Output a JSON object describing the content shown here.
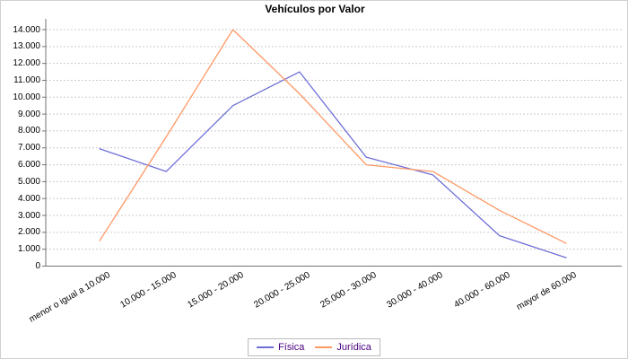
{
  "chart_data": {
    "type": "line",
    "title": "Vehículos por Valor",
    "categories": [
      "menor o igual a 10.000",
      "10.000 - 15.000",
      "15.000 - 20.000",
      "20.000 - 25.000",
      "25.000 - 30.000",
      "30.000 - 40.000",
      "40.000 - 60.000",
      "mayor de 60.000"
    ],
    "series": [
      {
        "name": "Física",
        "color": "#6f6fd8",
        "values": [
          6950,
          5600,
          9500,
          11500,
          6450,
          5400,
          1800,
          500
        ]
      },
      {
        "name": "Jurídica",
        "color": "#ff9966",
        "values": [
          1500,
          7650,
          14000,
          10200,
          6000,
          5600,
          3300,
          1350
        ]
      }
    ],
    "ylim": [
      0,
      14000
    ],
    "ytick_interval": 1000,
    "ytick_labels": [
      "0",
      "1.000",
      "2.000",
      "3.000",
      "4.000",
      "5.000",
      "6.000",
      "7.000",
      "8.000",
      "9.000",
      "10.000",
      "11.000",
      "12.000",
      "13.000",
      "14.000"
    ],
    "grid": "horizontal dashed",
    "legend_position": "bottom",
    "colors": {
      "background": "#ffffff",
      "grid": "#cccccc",
      "axis": "#737373",
      "tick_label": "#000000",
      "legend_text": "#4b0082",
      "legend_border": "#bbbbbb"
    }
  }
}
